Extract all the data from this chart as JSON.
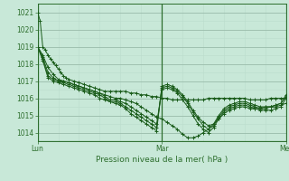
{
  "xlabel": "Pression niveau de la mer( hPa )",
  "bg_color": "#c8e8d8",
  "grid_major_color": "#99bbaa",
  "grid_minor_color": "#bbddcc",
  "line_color": "#1a5c1a",
  "ylim": [
    1013.5,
    1021.5
  ],
  "yticks": [
    1014,
    1015,
    1016,
    1017,
    1018,
    1019,
    1020,
    1021
  ],
  "xtick_labels": [
    "Lun",
    "Mar",
    "Mer"
  ],
  "xtick_positions": [
    0,
    48,
    96
  ],
  "x_max": 96,
  "series": [
    [
      0,
      1021.0,
      1,
      1020.5,
      2,
      1019.0,
      3,
      1018.8,
      4,
      1018.5,
      5,
      1018.3,
      6,
      1018.1,
      7,
      1017.9,
      8,
      1017.7,
      9,
      1017.5,
      10,
      1017.3,
      11,
      1017.2,
      12,
      1017.1,
      14,
      1017.0,
      16,
      1016.9,
      18,
      1016.8,
      20,
      1016.7,
      22,
      1016.6,
      24,
      1016.5,
      26,
      1016.4,
      28,
      1016.4,
      30,
      1016.4,
      32,
      1016.4,
      34,
      1016.4,
      36,
      1016.3,
      38,
      1016.3,
      40,
      1016.2,
      42,
      1016.2,
      44,
      1016.1,
      46,
      1016.1,
      48,
      1016.0,
      50,
      1016.0,
      52,
      1015.9,
      54,
      1015.9,
      56,
      1015.9,
      58,
      1015.9,
      60,
      1015.9,
      62,
      1015.9,
      64,
      1015.9,
      66,
      1016.0,
      68,
      1016.0,
      70,
      1016.0,
      72,
      1016.0,
      74,
      1016.0,
      76,
      1016.0,
      78,
      1016.0,
      80,
      1016.0,
      82,
      1015.9,
      84,
      1015.9,
      86,
      1015.9,
      88,
      1015.9,
      90,
      1016.0,
      92,
      1016.0,
      94,
      1016.0,
      96,
      1016.0
    ],
    [
      0,
      1019.0,
      2,
      1018.5,
      4,
      1017.8,
      6,
      1017.4,
      8,
      1017.1,
      10,
      1017.0,
      12,
      1016.9,
      14,
      1016.8,
      16,
      1016.7,
      18,
      1016.6,
      20,
      1016.5,
      22,
      1016.4,
      24,
      1016.3,
      26,
      1016.2,
      28,
      1016.1,
      30,
      1016.0,
      32,
      1016.0,
      34,
      1015.9,
      36,
      1015.8,
      38,
      1015.7,
      40,
      1015.5,
      42,
      1015.3,
      44,
      1015.1,
      46,
      1014.9,
      48,
      1014.8,
      50,
      1014.6,
      52,
      1014.4,
      54,
      1014.2,
      56,
      1013.9,
      58,
      1013.7,
      60,
      1013.7,
      62,
      1013.8,
      64,
      1014.0,
      66,
      1014.2,
      68,
      1014.5,
      70,
      1014.8,
      72,
      1015.1,
      74,
      1015.3,
      76,
      1015.4,
      78,
      1015.5,
      80,
      1015.5,
      82,
      1015.4,
      84,
      1015.4,
      86,
      1015.4,
      88,
      1015.5,
      90,
      1015.5,
      92,
      1015.5,
      94,
      1015.6,
      96,
      1015.7
    ],
    [
      0,
      1019.0,
      2,
      1018.4,
      4,
      1017.5,
      6,
      1017.2,
      8,
      1017.0,
      10,
      1017.0,
      12,
      1016.9,
      14,
      1016.8,
      16,
      1016.7,
      18,
      1016.6,
      20,
      1016.5,
      22,
      1016.4,
      24,
      1016.3,
      26,
      1016.1,
      28,
      1015.9,
      30,
      1015.9,
      32,
      1015.8,
      34,
      1015.7,
      36,
      1015.5,
      38,
      1015.3,
      40,
      1015.1,
      42,
      1014.9,
      44,
      1014.7,
      46,
      1014.5,
      48,
      1016.5,
      50,
      1016.6,
      52,
      1016.5,
      54,
      1016.3,
      56,
      1015.9,
      58,
      1015.5,
      60,
      1015.0,
      62,
      1014.5,
      64,
      1014.2,
      66,
      1014.0,
      68,
      1014.3,
      70,
      1014.8,
      72,
      1015.2,
      74,
      1015.4,
      76,
      1015.5,
      78,
      1015.6,
      80,
      1015.6,
      82,
      1015.5,
      84,
      1015.4,
      86,
      1015.3,
      88,
      1015.3,
      90,
      1015.3,
      92,
      1015.4,
      94,
      1015.5,
      96,
      1016.0
    ],
    [
      0,
      1019.0,
      2,
      1018.3,
      4,
      1017.3,
      6,
      1017.1,
      8,
      1017.0,
      10,
      1016.9,
      12,
      1016.8,
      14,
      1016.7,
      16,
      1016.6,
      18,
      1016.5,
      20,
      1016.4,
      22,
      1016.3,
      24,
      1016.2,
      26,
      1016.0,
      28,
      1015.8,
      30,
      1015.8,
      32,
      1015.7,
      34,
      1015.5,
      36,
      1015.3,
      38,
      1015.1,
      40,
      1014.9,
      42,
      1014.7,
      44,
      1014.5,
      46,
      1014.3,
      48,
      1016.6,
      50,
      1016.7,
      52,
      1016.6,
      54,
      1016.4,
      56,
      1016.1,
      58,
      1015.7,
      60,
      1015.2,
      62,
      1014.8,
      64,
      1014.4,
      66,
      1014.2,
      68,
      1014.4,
      70,
      1014.9,
      72,
      1015.3,
      74,
      1015.5,
      76,
      1015.6,
      78,
      1015.7,
      80,
      1015.7,
      82,
      1015.6,
      84,
      1015.5,
      86,
      1015.4,
      88,
      1015.4,
      90,
      1015.5,
      92,
      1015.6,
      94,
      1015.7,
      96,
      1016.1
    ],
    [
      0,
      1019.0,
      2,
      1018.2,
      4,
      1017.2,
      6,
      1017.0,
      8,
      1016.9,
      10,
      1016.8,
      12,
      1016.7,
      14,
      1016.6,
      16,
      1016.5,
      18,
      1016.4,
      20,
      1016.3,
      22,
      1016.2,
      24,
      1016.0,
      26,
      1015.9,
      28,
      1015.8,
      30,
      1015.7,
      32,
      1015.6,
      34,
      1015.4,
      36,
      1015.1,
      38,
      1014.9,
      40,
      1014.7,
      42,
      1014.5,
      44,
      1014.3,
      46,
      1014.1,
      48,
      1016.7,
      50,
      1016.8,
      52,
      1016.7,
      54,
      1016.5,
      56,
      1016.2,
      58,
      1015.8,
      60,
      1015.3,
      62,
      1014.9,
      64,
      1014.6,
      66,
      1014.4,
      68,
      1014.5,
      70,
      1015.0,
      72,
      1015.4,
      74,
      1015.6,
      76,
      1015.7,
      78,
      1015.8,
      80,
      1015.8,
      82,
      1015.7,
      84,
      1015.6,
      86,
      1015.5,
      88,
      1015.5,
      90,
      1015.5,
      92,
      1015.6,
      94,
      1015.7,
      96,
      1016.2
    ]
  ]
}
